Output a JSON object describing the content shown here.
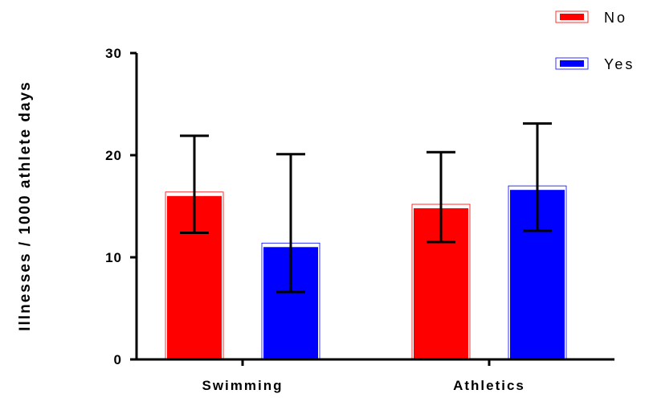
{
  "chart_data": {
    "type": "bar",
    "title": "",
    "xlabel": "",
    "ylabel": "Illnesses / 1000 athlete days",
    "ylim": [
      0,
      30
    ],
    "yticks": [
      "0",
      "10",
      "20",
      "30"
    ],
    "categories": [
      "Swimming",
      "Athletics"
    ],
    "series": [
      {
        "name": "No",
        "color": "#ff0000",
        "values": [
          16.0,
          14.8
        ],
        "err_low": [
          12.4,
          11.5
        ],
        "err_high": [
          21.9,
          20.3
        ]
      },
      {
        "name": "Yes",
        "color": "#0000ff",
        "values": [
          11.0,
          16.6
        ],
        "err_low": [
          6.6,
          12.6
        ],
        "err_high": [
          20.1,
          23.1
        ]
      }
    ],
    "legend": {
      "position": "top-right"
    },
    "grid": false
  }
}
